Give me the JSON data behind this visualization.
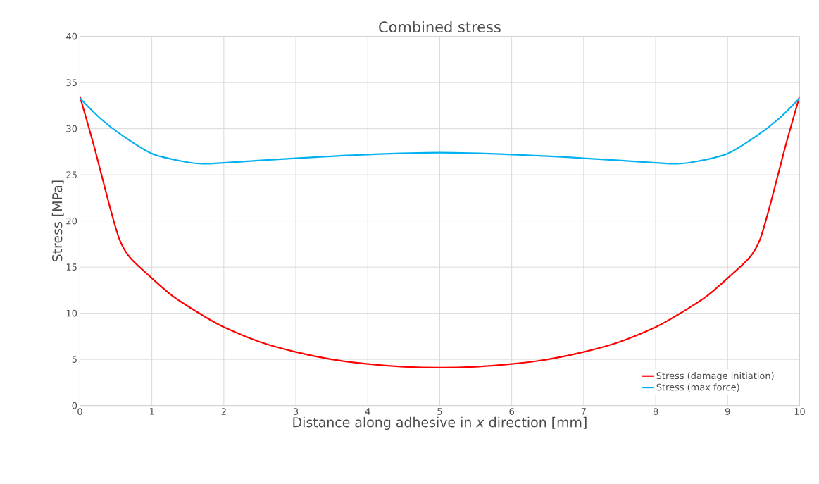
{
  "chart_data": {
    "type": "line",
    "title": "Combined stress",
    "xlabel": "Distance along adhesive in *x* direction [mm]",
    "ylabel": "Stress [MPa]",
    "xlim": [
      0,
      10
    ],
    "xticks": [
      0,
      1,
      2,
      3,
      4,
      5,
      6,
      7,
      8,
      9,
      10
    ],
    "ylim": [
      0,
      40
    ],
    "yticks": [
      0,
      5,
      10,
      15,
      20,
      25,
      30,
      35,
      40
    ],
    "grid": true,
    "legend": "bottom right",
    "marker": "none",
    "line_style": "solid",
    "series": [
      {
        "name": "Stress (damage initiation)",
        "color": "#ff0000",
        "x": [
          0,
          0.2,
          0.4,
          0.55,
          0.7,
          1,
          1.3,
          1.7,
          2,
          2.5,
          3,
          3.5,
          4,
          4.5,
          5,
          5.5,
          6,
          6.5,
          7,
          7.5,
          8,
          8.3,
          8.7,
          9,
          9.3,
          9.45,
          9.6,
          9.8,
          10
        ],
        "values": [
          33.5,
          28,
          22,
          18,
          16,
          13.8,
          11.8,
          9.8,
          8.5,
          6.9,
          5.8,
          5.0,
          4.5,
          4.2,
          4.1,
          4.2,
          4.5,
          5.0,
          5.8,
          6.9,
          8.5,
          9.8,
          11.8,
          13.8,
          16,
          18,
          22,
          28,
          33.5
        ]
      },
      {
        "name": "Stress (max force)",
        "color": "#00b0f0",
        "x": [
          0,
          0.3,
          0.6,
          1,
          1.4,
          1.7,
          2,
          3,
          4,
          5,
          6,
          7,
          8,
          8.3,
          8.6,
          9,
          9.4,
          9.7,
          10
        ],
        "values": [
          33.3,
          31,
          29.2,
          27.3,
          26.5,
          26.2,
          26.3,
          26.8,
          27.2,
          27.4,
          27.2,
          26.8,
          26.3,
          26.2,
          26.5,
          27.3,
          29.2,
          31,
          33.3
        ]
      }
    ]
  }
}
